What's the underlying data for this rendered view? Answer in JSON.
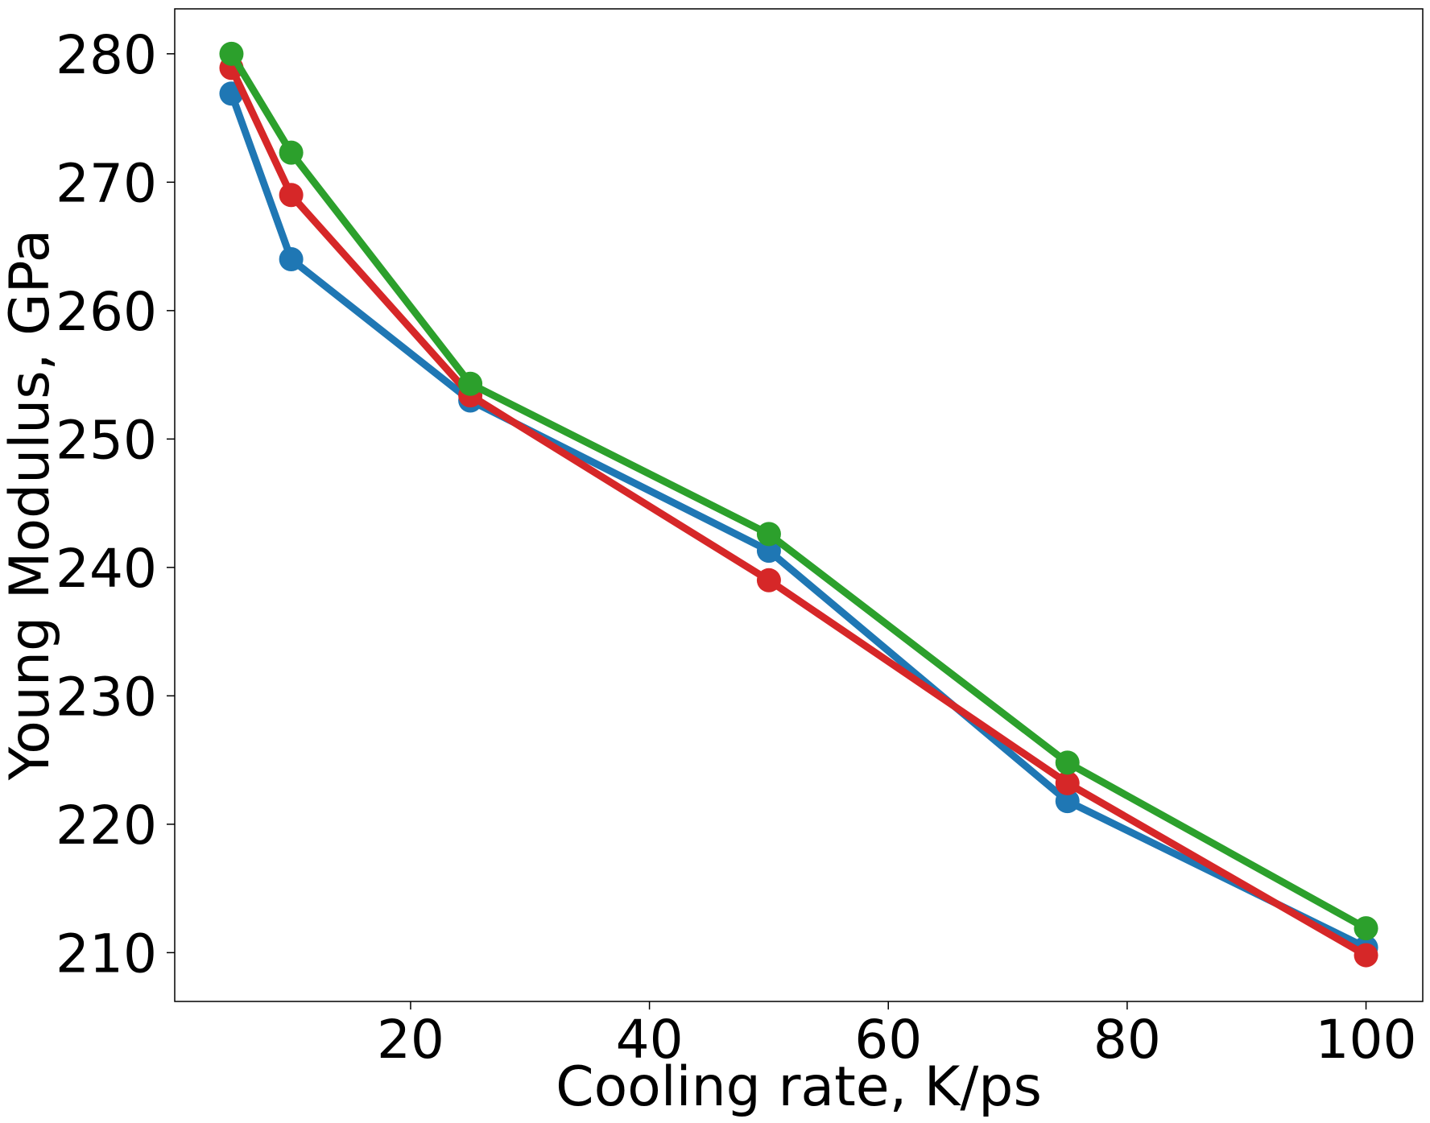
{
  "chart_data": {
    "type": "line",
    "title": "",
    "xlabel": "Cooling rate, K/ps",
    "ylabel": "Young Modulus, GPa",
    "x": [
      5,
      10,
      25,
      50,
      75,
      100
    ],
    "xlim": [
      0.25,
      104.75
    ],
    "ylim": [
      206.2,
      283.5
    ],
    "xticks": [
      20,
      40,
      60,
      80,
      100
    ],
    "yticks": [
      210,
      220,
      230,
      240,
      250,
      260,
      270,
      280
    ],
    "grid": false,
    "legend": "none",
    "series": [
      {
        "name": "blue series",
        "color": "#1f77b4",
        "values": [
          276.9,
          264.0,
          253.0,
          241.3,
          221.8,
          210.4
        ]
      },
      {
        "name": "red series",
        "color": "#d62728",
        "values": [
          278.9,
          269.0,
          253.4,
          239.0,
          223.2,
          209.8
        ]
      },
      {
        "name": "green series",
        "color": "#2ca02c",
        "values": [
          280.0,
          272.3,
          254.3,
          242.6,
          224.8,
          211.9
        ]
      }
    ]
  }
}
